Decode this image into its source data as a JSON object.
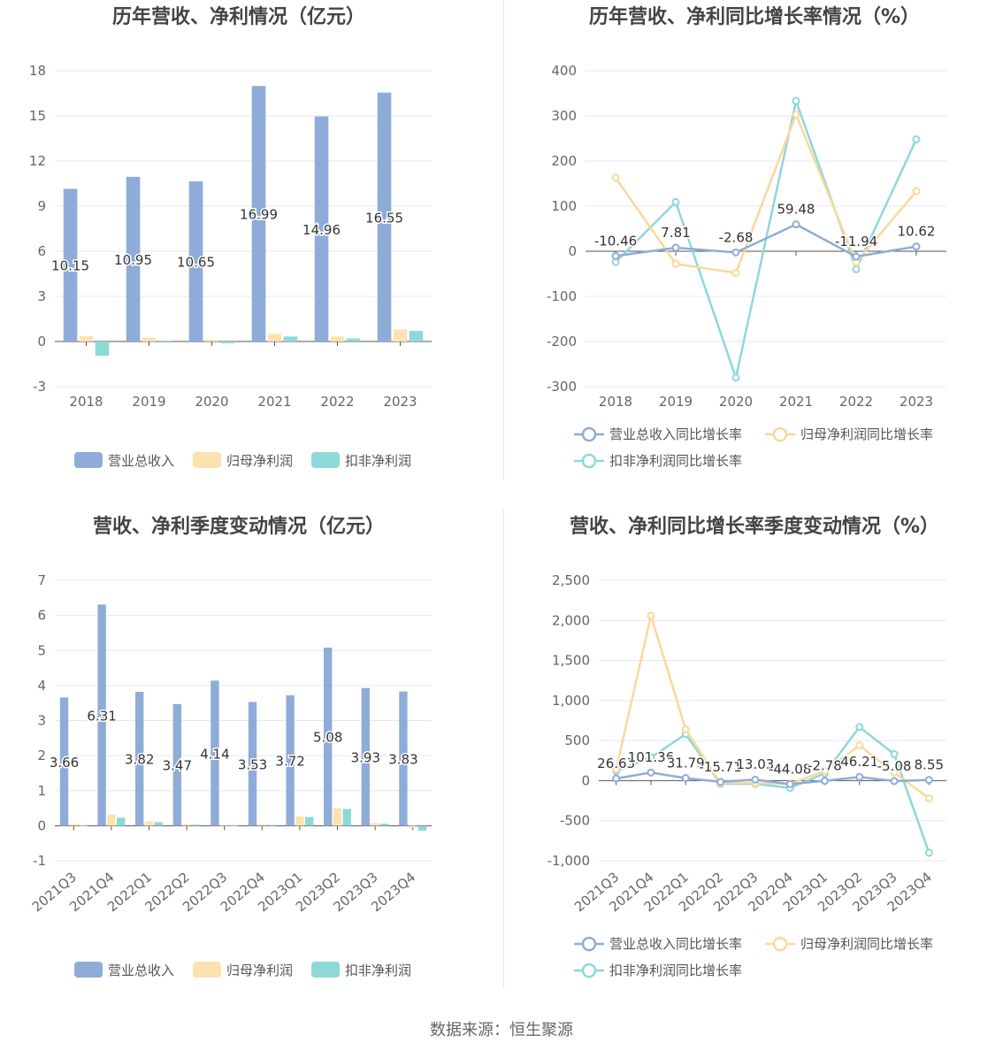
{
  "footer": {
    "source": "数据来源：恒生聚源"
  },
  "colors": {
    "revenue": "#8facd8",
    "net": "#fde2b0",
    "net_line": "#fbd89a",
    "deducted": "#8ed8d8",
    "deducted_bar": "#8ed8d8",
    "grid": "#e4e7ef",
    "axis": "#555555"
  },
  "chart_data": [
    {
      "id": "annual_amount",
      "type": "bar",
      "title": "历年营收、净利情况（亿元）",
      "categories": [
        "2018",
        "2019",
        "2020",
        "2021",
        "2022",
        "2023"
      ],
      "ylim": [
        -3,
        18
      ],
      "yticks": [
        "-3",
        "0",
        "3",
        "6",
        "9",
        "12",
        "15",
        "18"
      ],
      "ytick_values": [
        -3,
        0,
        3,
        6,
        9,
        12,
        15,
        18
      ],
      "series": [
        {
          "name": "营业总收入",
          "values": [
            10.15,
            10.95,
            10.65,
            16.99,
            14.96,
            16.55
          ],
          "labels": [
            "10.15",
            "10.95",
            "10.65",
            "16.99",
            "14.96",
            "16.55"
          ]
        },
        {
          "name": "归母净利润",
          "values": [
            0.35,
            0.25,
            0.12,
            0.52,
            0.33,
            0.8
          ]
        },
        {
          "name": "扣非净利润",
          "values": [
            -0.95,
            0.05,
            -0.12,
            0.33,
            0.2,
            0.7
          ]
        }
      ],
      "legend": "bottom"
    },
    {
      "id": "annual_growth",
      "type": "line",
      "title": "历年营收、净利同比增长率情况（%）",
      "categories": [
        "2018",
        "2019",
        "2020",
        "2021",
        "2022",
        "2023"
      ],
      "ylim": [
        -300,
        400
      ],
      "yticks": [
        "-300",
        "-200",
        "-100",
        "0",
        "100",
        "200",
        "300",
        "400"
      ],
      "ytick_values": [
        -300,
        -200,
        -100,
        0,
        100,
        200,
        300,
        400
      ],
      "series": [
        {
          "name": "营业总收入同比增长率",
          "values": [
            -10.46,
            7.81,
            -2.68,
            59.48,
            -11.94,
            10.62
          ],
          "labels": [
            "-10.46",
            "7.81",
            "-2.68",
            "59.48",
            "-11.94",
            "10.62"
          ]
        },
        {
          "name": "归母净利润同比增长率",
          "values": [
            163,
            -28,
            -48,
            303,
            -25,
            133
          ]
        },
        {
          "name": "扣非净利润同比增长率",
          "values": [
            -24,
            109,
            -280,
            333,
            -40,
            248
          ]
        }
      ],
      "legend": "bottom"
    },
    {
      "id": "quarterly_amount",
      "type": "bar",
      "title": "营收、净利季度变动情况（亿元）",
      "categories": [
        "2021Q3",
        "2021Q4",
        "2022Q1",
        "2022Q2",
        "2022Q3",
        "2022Q4",
        "2023Q1",
        "2023Q2",
        "2023Q3",
        "2023Q4"
      ],
      "ylim": [
        -1,
        7
      ],
      "yticks": [
        "-1",
        "0",
        "1",
        "2",
        "3",
        "4",
        "5",
        "6",
        "7"
      ],
      "ytick_values": [
        -1,
        0,
        1,
        2,
        3,
        4,
        5,
        6,
        7
      ],
      "series": [
        {
          "name": "营业总收入",
          "values": [
            3.66,
            6.31,
            3.82,
            3.47,
            4.14,
            3.53,
            3.72,
            5.08,
            3.93,
            3.83
          ],
          "labels": [
            "3.66",
            "6.31",
            "3.82",
            "3.47",
            "4.14",
            "3.53",
            "3.72",
            "5.08",
            "3.93",
            "3.83"
          ]
        },
        {
          "name": "归母净利润",
          "values": [
            0.05,
            0.32,
            0.12,
            0.05,
            0.02,
            0.04,
            0.27,
            0.5,
            0.08,
            -0.06
          ]
        },
        {
          "name": "扣非净利润",
          "values": [
            0.01,
            0.23,
            0.1,
            0.03,
            0.01,
            0.02,
            0.25,
            0.48,
            0.06,
            -0.14
          ]
        }
      ],
      "legend": "bottom"
    },
    {
      "id": "quarterly_growth",
      "type": "line",
      "title": "营收、净利同比增长率季度变动情况（%）",
      "categories": [
        "2021Q3",
        "2021Q4",
        "2022Q1",
        "2022Q2",
        "2022Q3",
        "2022Q4",
        "2023Q1",
        "2023Q2",
        "2023Q3",
        "2023Q4"
      ],
      "ylim": [
        -1000,
        2500
      ],
      "yticks": [
        "-1,000",
        "-500",
        "0",
        "500",
        "1,000",
        "1,500",
        "2,000",
        "2,500"
      ],
      "ytick_values": [
        -1000,
        -500,
        0,
        500,
        1000,
        1500,
        2000,
        2500
      ],
      "series": [
        {
          "name": "营业总收入同比增长率",
          "values": [
            26.63,
            101.36,
            31.79,
            -15.71,
            13.03,
            -44.08,
            -2.78,
            46.21,
            -5.08,
            8.55
          ],
          "labels": [
            "26.63",
            "101.36",
            "31.79",
            "-15.71",
            "13.03",
            "-44.08",
            "-2.78",
            "46.21",
            "-5.08",
            "8.55"
          ]
        },
        {
          "name": "归母净利润同比增长率",
          "values": [
            140,
            2060,
            640,
            -30,
            -30,
            -40,
            120,
            440,
            100,
            -220
          ]
        },
        {
          "name": "扣非净利润同比增长率",
          "values": [
            120,
            290,
            580,
            -40,
            -40,
            -90,
            90,
            670,
            330,
            -900
          ]
        }
      ],
      "legend": "bottom"
    }
  ]
}
